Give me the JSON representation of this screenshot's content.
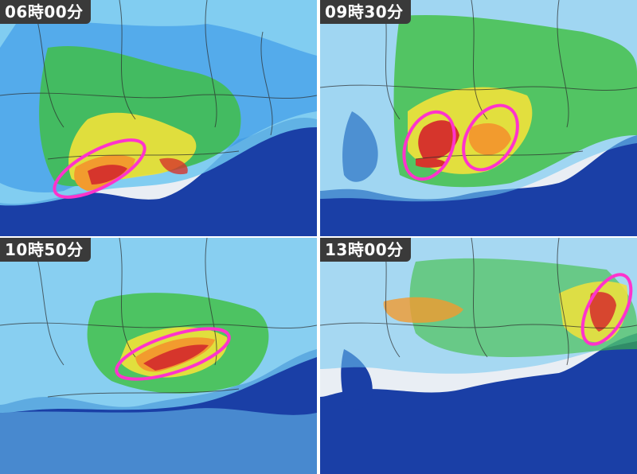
{
  "panels": [
    {
      "time_label": "06時00分"
    },
    {
      "time_label": "09時30分"
    },
    {
      "time_label": "10時50分"
    },
    {
      "time_label": "13時00分"
    }
  ],
  "colors": {
    "sea": "#1a3fa6",
    "land": "#e9eef4",
    "rain_light": "#63c4f2",
    "rain_moderate": "#2f8fe6",
    "rain_green": "#3fbf3f",
    "rain_yellow": "#f2e23a",
    "rain_orange": "#f29b2e",
    "rain_red": "#d6352c",
    "highlight_ellipse": "#ff33cc"
  }
}
